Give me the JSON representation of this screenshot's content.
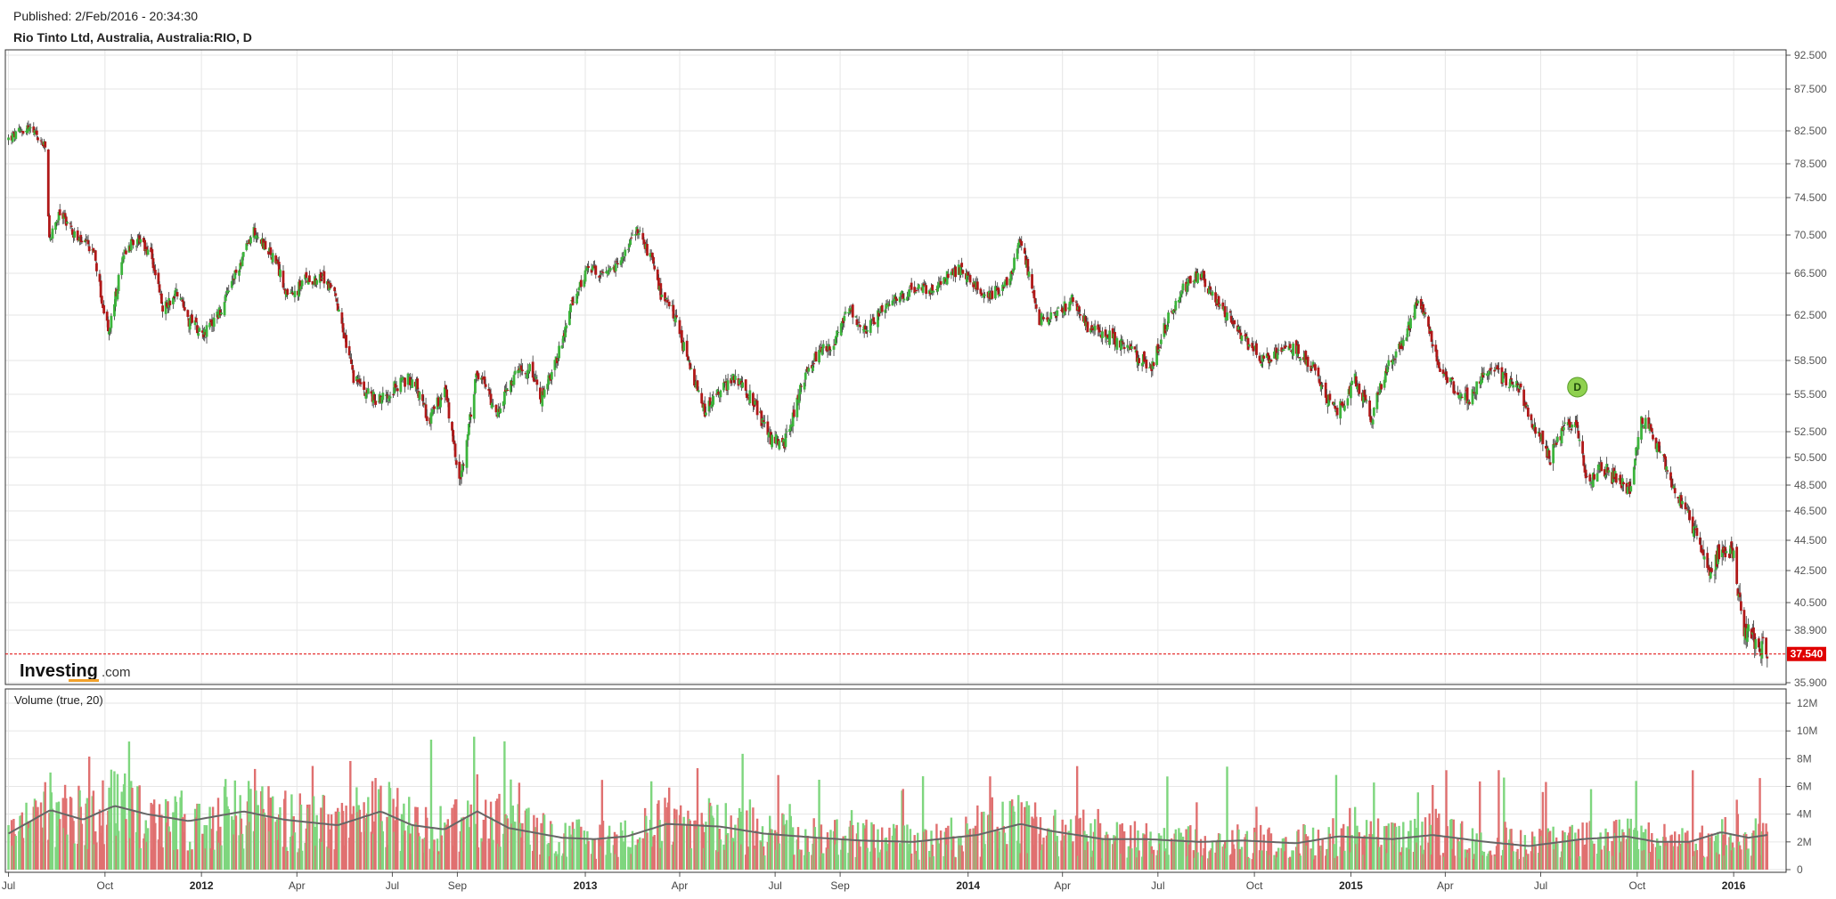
{
  "header": {
    "published": "Published: 2/Feb/2016 - 20:34:30",
    "title": "Rio Tinto Ltd, Australia, Australia:RIO, D"
  },
  "logo": {
    "main": "Investing",
    "suffix": ".com"
  },
  "volume_panel": {
    "label": "Volume (true, 20)"
  },
  "last_price": {
    "label": "37.540",
    "color": "#e00000"
  },
  "event_marker": {
    "letter": "D",
    "color": "#8fd14f"
  },
  "colors": {
    "up": "#3cb43c",
    "down": "#b01818",
    "vol_up": "#7ed67e",
    "vol_down": "#e07070",
    "ma_line": "#666666",
    "grid": "#e6e6e6"
  },
  "chart_data": [
    {
      "type": "candlestick",
      "title": "Rio Tinto Ltd, Australia, Australia:RIO, D",
      "ylim": [
        35.9,
        92.5
      ],
      "y_ticks": [
        "92.500",
        "87.500",
        "82.500",
        "78.500",
        "74.500",
        "70.500",
        "66.500",
        "62.500",
        "58.500",
        "55.500",
        "52.500",
        "50.500",
        "48.500",
        "46.500",
        "44.500",
        "42.500",
        "40.500",
        "38.900",
        "35.900"
      ],
      "x_ticks": [
        {
          "label": "Jul",
          "year": false
        },
        {
          "label": "Oct",
          "year": false
        },
        {
          "label": "2012",
          "year": true
        },
        {
          "label": "Apr",
          "year": false
        },
        {
          "label": "Jul",
          "year": false
        },
        {
          "label": "Sep",
          "year": false
        },
        {
          "label": "2013",
          "year": true
        },
        {
          "label": "Apr",
          "year": false
        },
        {
          "label": "Jul",
          "year": false
        },
        {
          "label": "Sep",
          "year": false
        },
        {
          "label": "2014",
          "year": true
        },
        {
          "label": "Apr",
          "year": false
        },
        {
          "label": "Jul",
          "year": false
        },
        {
          "label": "Oct",
          "year": false
        },
        {
          "label": "2015",
          "year": true
        },
        {
          "label": "Apr",
          "year": false
        },
        {
          "label": "Jul",
          "year": false
        },
        {
          "label": "Oct",
          "year": false
        },
        {
          "label": "2016",
          "year": true
        }
      ],
      "close_path": [
        [
          "2011-07-01",
          81.5
        ],
        [
          "2011-07-20",
          83.0
        ],
        [
          "2011-08-05",
          80.5
        ],
        [
          "2011-08-09",
          70.0
        ],
        [
          "2011-08-20",
          73.0
        ],
        [
          "2011-09-05",
          70.0
        ],
        [
          "2011-09-20",
          69.0
        ],
        [
          "2011-10-01",
          62.0
        ],
        [
          "2011-10-05",
          61.0
        ],
        [
          "2011-10-20",
          69.0
        ],
        [
          "2011-11-01",
          70.0
        ],
        [
          "2011-11-15",
          68.0
        ],
        [
          "2011-11-25",
          63.0
        ],
        [
          "2011-12-10",
          65.0
        ],
        [
          "2011-12-20",
          62.0
        ],
        [
          "2012-01-05",
          61.0
        ],
        [
          "2012-01-20",
          63.0
        ],
        [
          "2012-02-05",
          67.0
        ],
        [
          "2012-02-20",
          71.0
        ],
        [
          "2012-03-10",
          68.0
        ],
        [
          "2012-03-25",
          64.0
        ],
        [
          "2012-04-10",
          66.0
        ],
        [
          "2012-04-25",
          66.0
        ],
        [
          "2012-05-05",
          65.0
        ],
        [
          "2012-05-15",
          61.0
        ],
        [
          "2012-05-25",
          57.0
        ],
        [
          "2012-06-15",
          55.0
        ],
        [
          "2012-07-01",
          56.0
        ],
        [
          "2012-07-20",
          57.0
        ],
        [
          "2012-08-05",
          53.5
        ],
        [
          "2012-08-20",
          56.0
        ],
        [
          "2012-09-01",
          49.5
        ],
        [
          "2012-09-05",
          49.0
        ],
        [
          "2012-09-20",
          57.5
        ],
        [
          "2012-10-10",
          54.0
        ],
        [
          "2012-10-25",
          57.0
        ],
        [
          "2012-11-10",
          58.0
        ],
        [
          "2012-11-20",
          55.0
        ],
        [
          "2012-12-10",
          60.0
        ],
        [
          "2012-12-20",
          64.0
        ],
        [
          "2013-01-05",
          67.0
        ],
        [
          "2013-01-20",
          66.0
        ],
        [
          "2013-02-05",
          68.0
        ],
        [
          "2013-02-20",
          71.0
        ],
        [
          "2013-03-05",
          68.0
        ],
        [
          "2013-03-15",
          64.0
        ],
        [
          "2013-03-25",
          63.0
        ],
        [
          "2013-04-10",
          58.0
        ],
        [
          "2013-04-25",
          54.0
        ],
        [
          "2013-05-10",
          56.0
        ],
        [
          "2013-05-25",
          57.0
        ],
        [
          "2013-06-10",
          55.0
        ],
        [
          "2013-06-25",
          52.0
        ],
        [
          "2013-07-10",
          51.5
        ],
        [
          "2013-07-25",
          56.0
        ],
        [
          "2013-08-10",
          59.0
        ],
        [
          "2013-08-25",
          60.0
        ],
        [
          "2013-09-10",
          63.0
        ],
        [
          "2013-09-25",
          61.0
        ],
        [
          "2013-10-10",
          63.0
        ],
        [
          "2013-10-25",
          64.0
        ],
        [
          "2013-11-10",
          65.0
        ],
        [
          "2013-11-25",
          65.0
        ],
        [
          "2013-12-10",
          66.0
        ],
        [
          "2013-12-25",
          67.0
        ],
        [
          "2014-01-10",
          65.0
        ],
        [
          "2014-01-25",
          64.5
        ],
        [
          "2014-02-10",
          66.0
        ],
        [
          "2014-02-20",
          70.0
        ],
        [
          "2014-03-01",
          66.0
        ],
        [
          "2014-03-10",
          62.0
        ],
        [
          "2014-03-25",
          62.5
        ],
        [
          "2014-04-10",
          64.0
        ],
        [
          "2014-04-25",
          61.5
        ],
        [
          "2014-05-10",
          61.0
        ],
        [
          "2014-05-25",
          60.0
        ],
        [
          "2014-06-10",
          59.0
        ],
        [
          "2014-06-25",
          58.0
        ],
        [
          "2014-07-10",
          62.0
        ],
        [
          "2014-07-25",
          65.0
        ],
        [
          "2014-08-10",
          66.5
        ],
        [
          "2014-08-25",
          64.0
        ],
        [
          "2014-09-10",
          62.0
        ],
        [
          "2014-09-25",
          60.0
        ],
        [
          "2014-10-10",
          58.5
        ],
        [
          "2014-10-25",
          59.0
        ],
        [
          "2014-11-10",
          59.5
        ],
        [
          "2014-11-25",
          58.0
        ],
        [
          "2014-12-10",
          55.0
        ],
        [
          "2014-12-20",
          54.0
        ],
        [
          "2015-01-05",
          57.0
        ],
        [
          "2015-01-20",
          53.5
        ],
        [
          "2015-02-05",
          58.0
        ],
        [
          "2015-02-20",
          60.0
        ],
        [
          "2015-03-05",
          63.5
        ],
        [
          "2015-03-15",
          62.0
        ],
        [
          "2015-03-25",
          58.0
        ],
        [
          "2015-04-10",
          56.0
        ],
        [
          "2015-04-25",
          55.0
        ],
        [
          "2015-05-10",
          58.0
        ],
        [
          "2015-05-25",
          57.0
        ],
        [
          "2015-06-10",
          56.0
        ],
        [
          "2015-06-25",
          53.0
        ],
        [
          "2015-07-10",
          50.5
        ],
        [
          "2015-07-25",
          53.0
        ],
        [
          "2015-08-05",
          53.0
        ],
        [
          "2015-08-15",
          48.5
        ],
        [
          "2015-08-25",
          50.0
        ],
        [
          "2015-09-10",
          49.0
        ],
        [
          "2015-09-25",
          48.0
        ],
        [
          "2015-10-05",
          53.5
        ],
        [
          "2015-10-15",
          52.5
        ],
        [
          "2015-10-30",
          49.5
        ],
        [
          "2015-11-15",
          46.5
        ],
        [
          "2015-11-30",
          44.5
        ],
        [
          "2015-12-10",
          42.0
        ],
        [
          "2015-12-20",
          44.0
        ],
        [
          "2016-01-01",
          43.5
        ],
        [
          "2016-01-10",
          39.0
        ],
        [
          "2016-01-20",
          38.5
        ],
        [
          "2016-02-02",
          37.54
        ]
      ],
      "event": {
        "date": "2015-08-05",
        "letter": "D"
      },
      "last": 37.54
    },
    {
      "type": "bar",
      "title": "Volume (true, 20)",
      "ylim": [
        0,
        12000000
      ],
      "y_ticks": [
        "12M",
        "10M",
        "8M",
        "6M",
        "4M",
        "2M",
        "0"
      ],
      "ma_path": [
        [
          "2011-07-01",
          2.6
        ],
        [
          "2011-08-10",
          4.3
        ],
        [
          "2011-09-10",
          3.6
        ],
        [
          "2011-10-10",
          4.6
        ],
        [
          "2011-11-10",
          4.0
        ],
        [
          "2011-12-20",
          3.5
        ],
        [
          "2012-02-10",
          4.2
        ],
        [
          "2012-03-20",
          3.6
        ],
        [
          "2012-05-10",
          3.2
        ],
        [
          "2012-06-20",
          4.2
        ],
        [
          "2012-07-20",
          3.2
        ],
        [
          "2012-08-20",
          2.9
        ],
        [
          "2012-09-20",
          4.2
        ],
        [
          "2012-10-20",
          3.0
        ],
        [
          "2012-12-10",
          2.3
        ],
        [
          "2013-01-10",
          2.2
        ],
        [
          "2013-02-10",
          2.4
        ],
        [
          "2013-03-20",
          3.3
        ],
        [
          "2013-05-10",
          3.1
        ],
        [
          "2013-06-20",
          2.6
        ],
        [
          "2013-08-10",
          2.3
        ],
        [
          "2013-09-20",
          2.1
        ],
        [
          "2013-11-10",
          2.0
        ],
        [
          "2014-01-10",
          2.5
        ],
        [
          "2014-02-20",
          3.3
        ],
        [
          "2014-03-20",
          2.8
        ],
        [
          "2014-05-10",
          2.2
        ],
        [
          "2014-06-20",
          2.2
        ],
        [
          "2014-08-10",
          2.0
        ],
        [
          "2014-09-20",
          2.1
        ],
        [
          "2014-11-10",
          1.9
        ],
        [
          "2014-12-20",
          2.4
        ],
        [
          "2015-02-10",
          2.2
        ],
        [
          "2015-03-20",
          2.5
        ],
        [
          "2015-05-10",
          2.0
        ],
        [
          "2015-06-20",
          1.7
        ],
        [
          "2015-08-10",
          2.2
        ],
        [
          "2015-09-20",
          2.4
        ],
        [
          "2015-10-20",
          2.0
        ],
        [
          "2015-11-20",
          2.0
        ],
        [
          "2015-12-20",
          2.7
        ],
        [
          "2016-01-15",
          2.3
        ],
        [
          "2016-02-02",
          2.5
        ]
      ]
    }
  ]
}
